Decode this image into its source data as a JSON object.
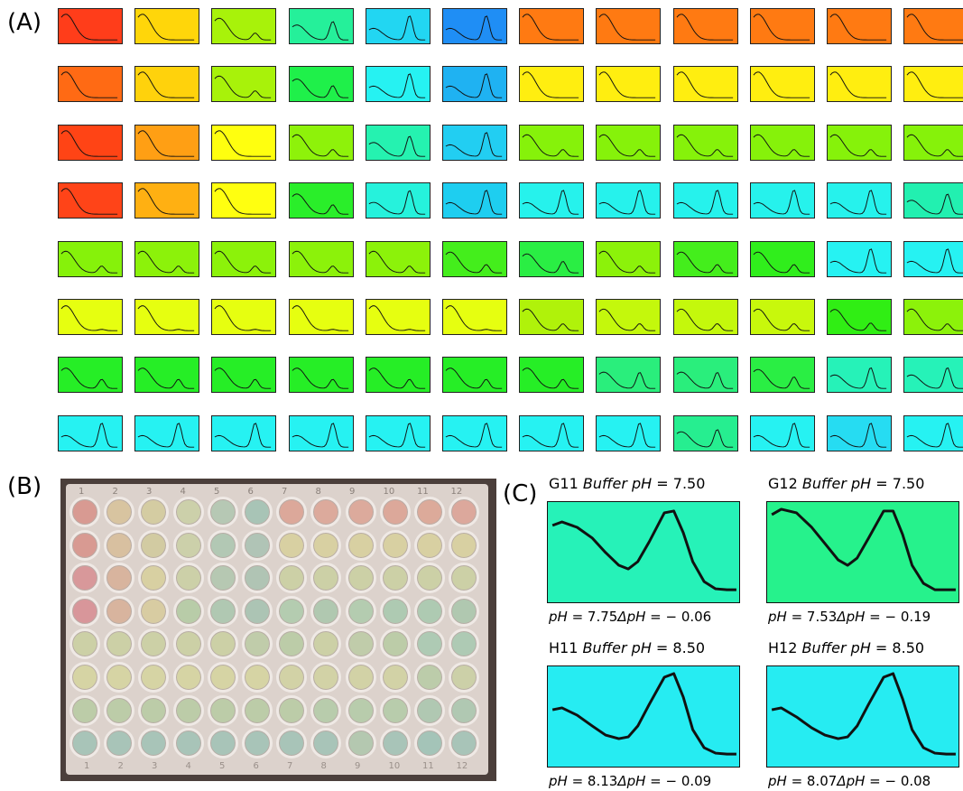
{
  "panel_labels": {
    "a": "(A)",
    "b": "(B)",
    "c": "(C)"
  },
  "panel_a": {
    "rows": 8,
    "cols": 12,
    "tile_colors": [
      [
        "#ff3d1a",
        "#ffd60a",
        "#a8f20a",
        "#25f09a",
        "#22d6f2",
        "#1f8ef5",
        "#ff7a12",
        "#ff7a12",
        "#ff7a12",
        "#ff7a12",
        "#ff7a12",
        "#ff7a12"
      ],
      [
        "#ff6a14",
        "#ffd20c",
        "#a8f20a",
        "#1ff04a",
        "#26f2f2",
        "#1fb2f2",
        "#ffee10",
        "#ffee10",
        "#ffee10",
        "#ffee10",
        "#ffee10",
        "#ffee10"
      ],
      [
        "#ff4415",
        "#ff9f14",
        "#ffff0f",
        "#8ef20a",
        "#25f2b0",
        "#22cef2",
        "#86f20a",
        "#86f20a",
        "#86f20a",
        "#86f20a",
        "#86f20a",
        "#86f20a"
      ],
      [
        "#ff4418",
        "#ffb012",
        "#ffff10",
        "#2aee2a",
        "#26f2dc",
        "#1ecef0",
        "#26f2ec",
        "#26f2ec",
        "#26f2ec",
        "#26f2ec",
        "#26f2ec",
        "#22f0b0"
      ],
      [
        "#86f20a",
        "#8cf20a",
        "#8cf20a",
        "#8cf20a",
        "#8cf20a",
        "#44ee1c",
        "#2aee44",
        "#8cf20a",
        "#44ee1c",
        "#30ee1c",
        "#26f2f2",
        "#26f2f2"
      ],
      [
        "#e6ff10",
        "#e6ff10",
        "#e6ff10",
        "#e6ff10",
        "#e6ff10",
        "#e6ff10",
        "#b0f20a",
        "#c4f80c",
        "#c4f80c",
        "#c8f80c",
        "#30ee14",
        "#8cf20a"
      ],
      [
        "#26ee26",
        "#26ee26",
        "#26ee26",
        "#26ee26",
        "#26ee26",
        "#26ee26",
        "#26ee26",
        "#2aee7c",
        "#2aee7c",
        "#2aee44",
        "#26f2b8",
        "#26f2b8"
      ],
      [
        "#26f2f2",
        "#26f2f2",
        "#26f2f2",
        "#26f2f2",
        "#26f2f2",
        "#26f2f2",
        "#26f2f2",
        "#26f2f2",
        "#26ee90",
        "#26f2f2",
        "#26dcf2",
        "#26f2f2"
      ]
    ]
  },
  "panel_b": {
    "col_numbers": [
      "1",
      "2",
      "3",
      "4",
      "5",
      "6",
      "7",
      "8",
      "9",
      "10",
      "11",
      "12"
    ],
    "bottom_numbers": [
      "1",
      "2",
      "3",
      "4",
      "5",
      "6",
      "7",
      "8",
      "9",
      "10",
      "11",
      "12"
    ],
    "well_colors": [
      [
        "#d89a92",
        "#d8c4a0",
        "#d4cca2",
        "#ccd0aa",
        "#b6c8b4",
        "#a8c4b6",
        "#dca89a",
        "#dcaa9c",
        "#dcaa9c",
        "#dca89a",
        "#dcaa9a",
        "#dca89c"
      ],
      [
        "#d89a92",
        "#d8c0a0",
        "#d2cba2",
        "#ccd0aa",
        "#b2c8b4",
        "#b0c4b6",
        "#d8d0a2",
        "#d8d0a2",
        "#d8d0a2",
        "#d8d0a2",
        "#d8d0a2",
        "#d8d0a2"
      ],
      [
        "#d8989a",
        "#d8b49e",
        "#d8d0a2",
        "#ccd0a8",
        "#b6c8b2",
        "#b0c4b4",
        "#ccd0a6",
        "#ccd0a6",
        "#ccd0a6",
        "#ccd0a6",
        "#ccd0a6",
        "#ccd0a6"
      ],
      [
        "#d8969a",
        "#d8b49e",
        "#d8cca2",
        "#b8cca8",
        "#b0c8b2",
        "#acc4b4",
        "#b4ccb0",
        "#b0c8b0",
        "#b4ccb0",
        "#aecab2",
        "#aecab2",
        "#b0c8b0"
      ],
      [
        "#ccd0a6",
        "#ccd0a6",
        "#ccd0a6",
        "#ccd0a6",
        "#ccd0a6",
        "#c0ccaa",
        "#bccca8",
        "#ccd0a6",
        "#c0ccaa",
        "#bccca8",
        "#aecab4",
        "#aecab4"
      ],
      [
        "#d6d4a4",
        "#d6d4a4",
        "#d6d4a4",
        "#d6d4a4",
        "#d6d4a4",
        "#d6d4a4",
        "#d2d2a6",
        "#d2d2a6",
        "#d2d2a6",
        "#d2d2a6",
        "#bcccaa",
        "#ccd0a8"
      ],
      [
        "#bccca8",
        "#bccca8",
        "#bccca8",
        "#bccca8",
        "#bccca8",
        "#bccca8",
        "#bccca8",
        "#b8ccac",
        "#b8ccac",
        "#b8ccac",
        "#b0c8b2",
        "#b0c8b2"
      ],
      [
        "#a8c4b8",
        "#a8c4b8",
        "#a8c4b8",
        "#a8c4b8",
        "#a8c4b8",
        "#a8c4b8",
        "#a8c4b8",
        "#a8c4b8",
        "#b4c8b0",
        "#a8c4b8",
        "#a4c4b8",
        "#a8c4b8"
      ]
    ]
  },
  "panel_c": {
    "plots": [
      {
        "well": "G11",
        "title_mid": "Buffer",
        "title_var": "pH",
        "title_eq": " = 7.50",
        "foot_var": "pH",
        "foot_val": " = 7.75",
        "foot_dvar": "ΔpH",
        "foot_dval": " = − 0.06",
        "color": "#26f2b8",
        "curve": [
          0.22,
          0.18,
          0.24,
          0.36,
          0.52,
          0.66,
          0.7,
          0.62,
          0.4,
          0.08,
          0.06,
          0.3,
          0.62,
          0.84,
          0.92,
          0.93,
          0.93
        ]
      },
      {
        "well": "G12",
        "title_mid": "Buffer",
        "title_var": "pH",
        "title_eq": " = 7.50",
        "foot_var": "pH",
        "foot_val": " = 7.53",
        "foot_dvar": "ΔpH",
        "foot_dval": " = − 0.19",
        "color": "#26f28c",
        "curve": [
          0.1,
          0.04,
          0.08,
          0.24,
          0.42,
          0.6,
          0.66,
          0.58,
          0.36,
          0.06,
          0.06,
          0.32,
          0.66,
          0.86,
          0.93,
          0.93,
          0.93
        ]
      },
      {
        "well": "H11",
        "title_mid": "Buffer",
        "title_var": "pH",
        "title_eq": " = 8.50",
        "foot_var": "pH",
        "foot_val": " = 8.13",
        "foot_dvar": "ΔpH",
        "foot_dval": " = − 0.09",
        "color": "#26ecf2",
        "curve": [
          0.44,
          0.42,
          0.5,
          0.62,
          0.72,
          0.76,
          0.74,
          0.62,
          0.38,
          0.08,
          0.04,
          0.3,
          0.66,
          0.86,
          0.92,
          0.93,
          0.93
        ]
      },
      {
        "well": "H12",
        "title_mid": "Buffer",
        "title_var": "pH",
        "title_eq": " = 8.50",
        "foot_var": "pH",
        "foot_val": " = 8.07",
        "foot_dvar": "ΔpH",
        "foot_dval": " = − 0.08",
        "color": "#26ecf2",
        "curve": [
          0.44,
          0.42,
          0.52,
          0.64,
          0.72,
          0.76,
          0.74,
          0.62,
          0.38,
          0.08,
          0.04,
          0.32,
          0.66,
          0.86,
          0.92,
          0.93,
          0.93
        ]
      }
    ]
  }
}
